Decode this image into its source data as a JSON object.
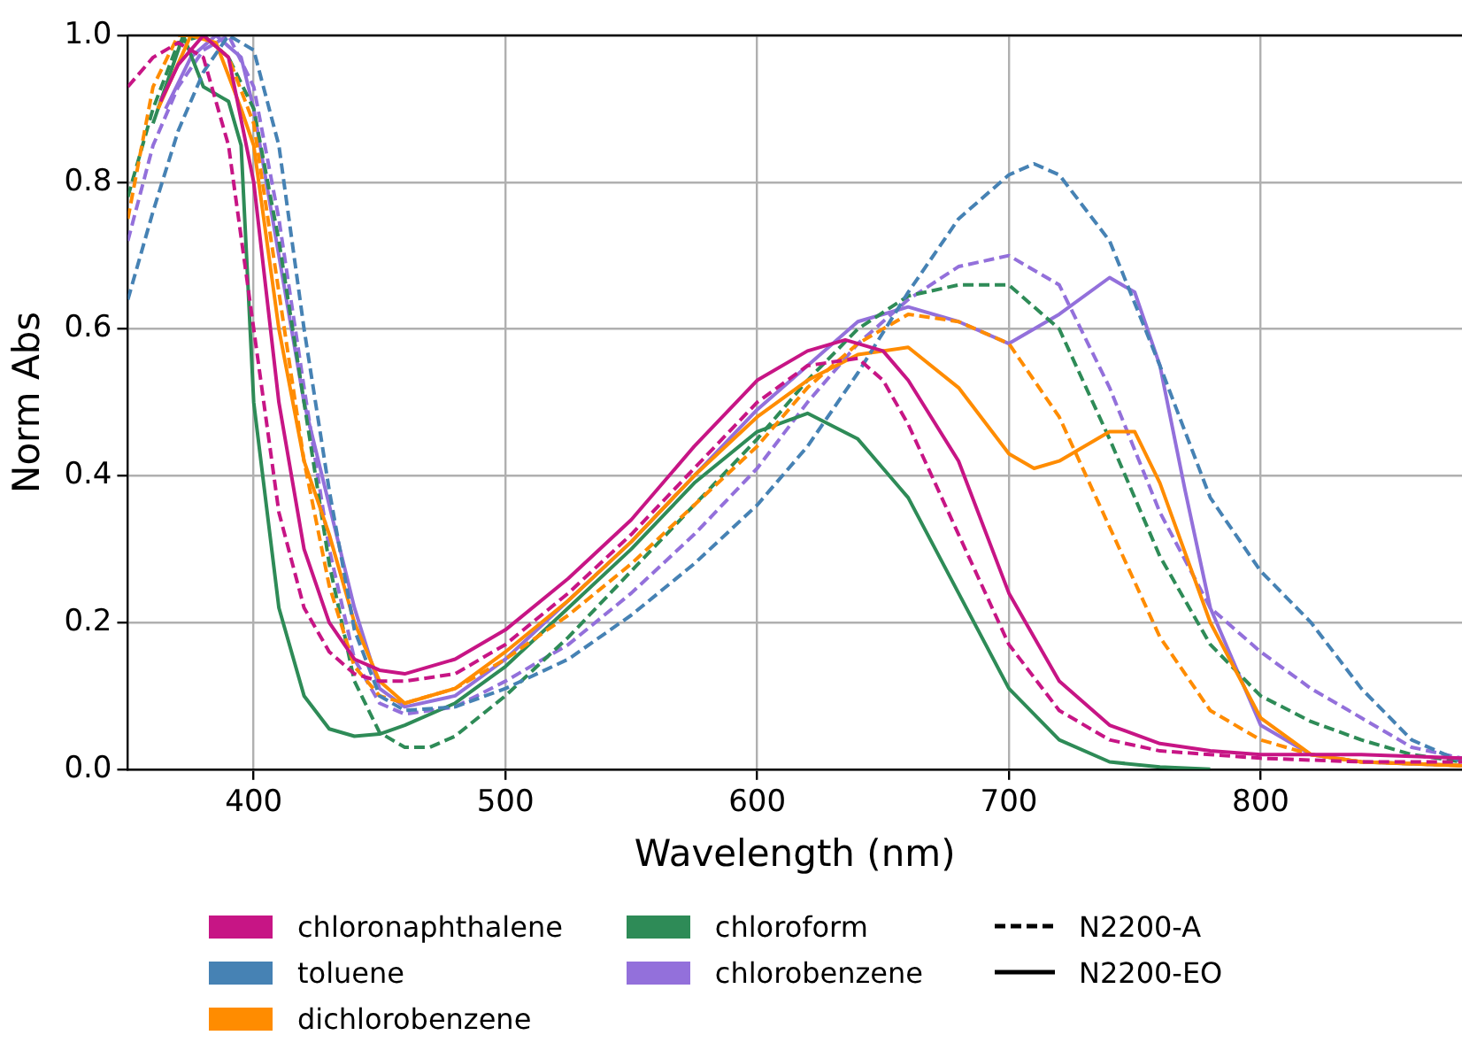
{
  "chart_data": {
    "type": "line",
    "xlabel": "Wavelength (nm)",
    "ylabel": "Norm Abs",
    "xlim": [
      350,
      880
    ],
    "xticks": [
      400,
      500,
      600,
      700,
      800
    ],
    "ylim": [
      0,
      1
    ],
    "yticks": [
      {
        "value": 0,
        "label": "0.0"
      },
      {
        "value": 0.2,
        "label": "0.2"
      },
      {
        "value": 0.4,
        "label": "0.4"
      },
      {
        "value": 0.6,
        "label": "0.6"
      },
      {
        "value": 0.8,
        "label": "0.8"
      },
      {
        "value": 1,
        "label": "1.0"
      }
    ],
    "grid": true,
    "legend": "bottom",
    "marker": "none",
    "annotations": [
      "N2200-A",
      "N2200-EO"
    ],
    "series": [
      {
        "name": "chloronaphthalene",
        "color": "#c71585",
        "line_style": "dashed",
        "x": [
          350,
          360,
          370,
          380,
          390,
          400,
          410,
          420,
          430,
          440,
          450,
          460,
          480,
          500,
          525,
          550,
          575,
          600,
          620,
          640,
          650,
          660,
          680,
          700,
          720,
          740,
          760,
          780,
          800,
          840,
          880
        ],
        "values": [
          0.93,
          0.97,
          0.99,
          0.97,
          0.85,
          0.6,
          0.35,
          0.22,
          0.16,
          0.13,
          0.12,
          0.12,
          0.13,
          0.17,
          0.24,
          0.32,
          0.41,
          0.5,
          0.55,
          0.56,
          0.53,
          0.47,
          0.32,
          0.17,
          0.08,
          0.04,
          0.025,
          0.02,
          0.015,
          0.01,
          0.01
        ]
      },
      {
        "color": "#c71585",
        "line_style": "solid",
        "x": [
          363,
          370,
          380,
          390,
          400,
          410,
          420,
          430,
          440,
          450,
          460,
          480,
          500,
          525,
          550,
          575,
          600,
          620,
          635,
          650,
          660,
          680,
          700,
          720,
          740,
          760,
          780,
          800,
          840,
          880
        ],
        "values": [
          0.91,
          0.96,
          1.0,
          0.97,
          0.8,
          0.5,
          0.3,
          0.2,
          0.15,
          0.135,
          0.13,
          0.15,
          0.19,
          0.26,
          0.34,
          0.44,
          0.53,
          0.57,
          0.585,
          0.57,
          0.53,
          0.42,
          0.24,
          0.12,
          0.06,
          0.035,
          0.025,
          0.02,
          0.02,
          0.015
        ]
      },
      {
        "name": "toluene",
        "color": "#4682b4",
        "line_style": "dashed",
        "x": [
          350,
          360,
          370,
          380,
          390,
          400,
          410,
          420,
          430,
          440,
          450,
          460,
          480,
          500,
          525,
          550,
          575,
          600,
          620,
          640,
          660,
          680,
          700,
          710,
          720,
          740,
          760,
          780,
          800,
          820,
          840,
          860,
          880
        ],
        "values": [
          0.64,
          0.76,
          0.87,
          0.95,
          1.0,
          0.98,
          0.85,
          0.6,
          0.38,
          0.19,
          0.1,
          0.08,
          0.085,
          0.11,
          0.15,
          0.21,
          0.28,
          0.36,
          0.44,
          0.54,
          0.65,
          0.75,
          0.81,
          0.825,
          0.81,
          0.72,
          0.55,
          0.37,
          0.27,
          0.2,
          0.11,
          0.04,
          0.01
        ]
      },
      {
        "name": "dichlorobenzene",
        "color": "#ff8c00",
        "line_style": "dashed",
        "x": [
          350,
          360,
          370,
          380,
          390,
          400,
          410,
          420,
          430,
          440,
          450,
          460,
          480,
          500,
          525,
          550,
          575,
          600,
          620,
          640,
          660,
          680,
          700,
          720,
          740,
          760,
          780,
          800,
          820,
          840,
          880
        ],
        "values": [
          0.75,
          0.93,
          1.0,
          1.0,
          0.97,
          0.88,
          0.65,
          0.42,
          0.25,
          0.14,
          0.1,
          0.09,
          0.11,
          0.15,
          0.21,
          0.28,
          0.36,
          0.44,
          0.52,
          0.58,
          0.62,
          0.61,
          0.58,
          0.48,
          0.33,
          0.18,
          0.08,
          0.04,
          0.02,
          0.01,
          0.005
        ]
      },
      {
        "color": "#ff8c00",
        "line_style": "solid",
        "x": [
          362,
          375,
          385,
          395,
          400,
          410,
          420,
          430,
          440,
          450,
          460,
          480,
          500,
          525,
          550,
          575,
          600,
          620,
          640,
          660,
          680,
          700,
          710,
          720,
          740,
          750,
          760,
          780,
          800,
          820,
          840,
          880
        ],
        "values": [
          0.9,
          1.0,
          0.99,
          0.9,
          0.85,
          0.6,
          0.42,
          0.32,
          0.2,
          0.12,
          0.09,
          0.11,
          0.16,
          0.23,
          0.31,
          0.4,
          0.48,
          0.53,
          0.565,
          0.575,
          0.52,
          0.43,
          0.41,
          0.42,
          0.46,
          0.46,
          0.39,
          0.2,
          0.07,
          0.02,
          0.01,
          0.005
        ]
      },
      {
        "name": "chloroform",
        "color": "#2e8b57",
        "line_style": "dashed",
        "x": [
          350,
          360,
          370,
          380,
          390,
          400,
          410,
          420,
          430,
          440,
          450,
          460,
          470,
          480,
          500,
          525,
          550,
          575,
          600,
          620,
          640,
          660,
          680,
          700,
          720,
          740,
          760,
          780,
          800,
          820,
          840,
          860,
          880
        ],
        "values": [
          0.78,
          0.9,
          0.99,
          1.0,
          0.97,
          0.9,
          0.72,
          0.5,
          0.28,
          0.12,
          0.05,
          0.03,
          0.03,
          0.045,
          0.1,
          0.18,
          0.27,
          0.36,
          0.45,
          0.53,
          0.6,
          0.645,
          0.66,
          0.66,
          0.6,
          0.45,
          0.29,
          0.17,
          0.1,
          0.065,
          0.04,
          0.02,
          0.01
        ]
      },
      {
        "color": "#2e8b57",
        "line_style": "solid",
        "x": [
          360,
          372,
          380,
          390,
          395,
          400,
          410,
          420,
          430,
          440,
          450,
          460,
          480,
          500,
          525,
          550,
          575,
          600,
          620,
          640,
          660,
          680,
          700,
          720,
          740,
          760,
          780
        ],
        "values": [
          0.88,
          1.0,
          0.93,
          0.91,
          0.85,
          0.5,
          0.22,
          0.1,
          0.055,
          0.045,
          0.048,
          0.06,
          0.09,
          0.14,
          0.22,
          0.3,
          0.39,
          0.46,
          0.485,
          0.45,
          0.37,
          0.24,
          0.11,
          0.04,
          0.01,
          0.003,
          0
        ]
      },
      {
        "name": "chlorobenzene",
        "color": "#9370db",
        "line_style": "dashed",
        "x": [
          350,
          360,
          370,
          380,
          390,
          400,
          410,
          420,
          430,
          440,
          450,
          460,
          480,
          500,
          525,
          550,
          575,
          600,
          620,
          640,
          660,
          680,
          700,
          720,
          740,
          760,
          780,
          800,
          820,
          840,
          860,
          880
        ],
        "values": [
          0.72,
          0.85,
          0.93,
          0.98,
          1.0,
          0.93,
          0.75,
          0.52,
          0.3,
          0.15,
          0.09,
          0.075,
          0.085,
          0.12,
          0.17,
          0.24,
          0.32,
          0.41,
          0.5,
          0.58,
          0.64,
          0.685,
          0.7,
          0.66,
          0.52,
          0.35,
          0.22,
          0.16,
          0.11,
          0.07,
          0.03,
          0.015
        ]
      },
      {
        "color": "#9370db",
        "line_style": "solid",
        "x": [
          365,
          375,
          385,
          395,
          400,
          410,
          420,
          430,
          440,
          450,
          460,
          480,
          500,
          525,
          550,
          575,
          600,
          620,
          640,
          660,
          680,
          700,
          720,
          740,
          750,
          760,
          770,
          780,
          800,
          820,
          840,
          880
        ],
        "values": [
          0.9,
          0.97,
          1.0,
          0.97,
          0.9,
          0.7,
          0.5,
          0.36,
          0.22,
          0.11,
          0.085,
          0.1,
          0.15,
          0.23,
          0.31,
          0.4,
          0.49,
          0.55,
          0.61,
          0.63,
          0.61,
          0.58,
          0.62,
          0.67,
          0.65,
          0.55,
          0.38,
          0.22,
          0.06,
          0.02,
          0.01,
          0.005
        ]
      }
    ]
  }
}
